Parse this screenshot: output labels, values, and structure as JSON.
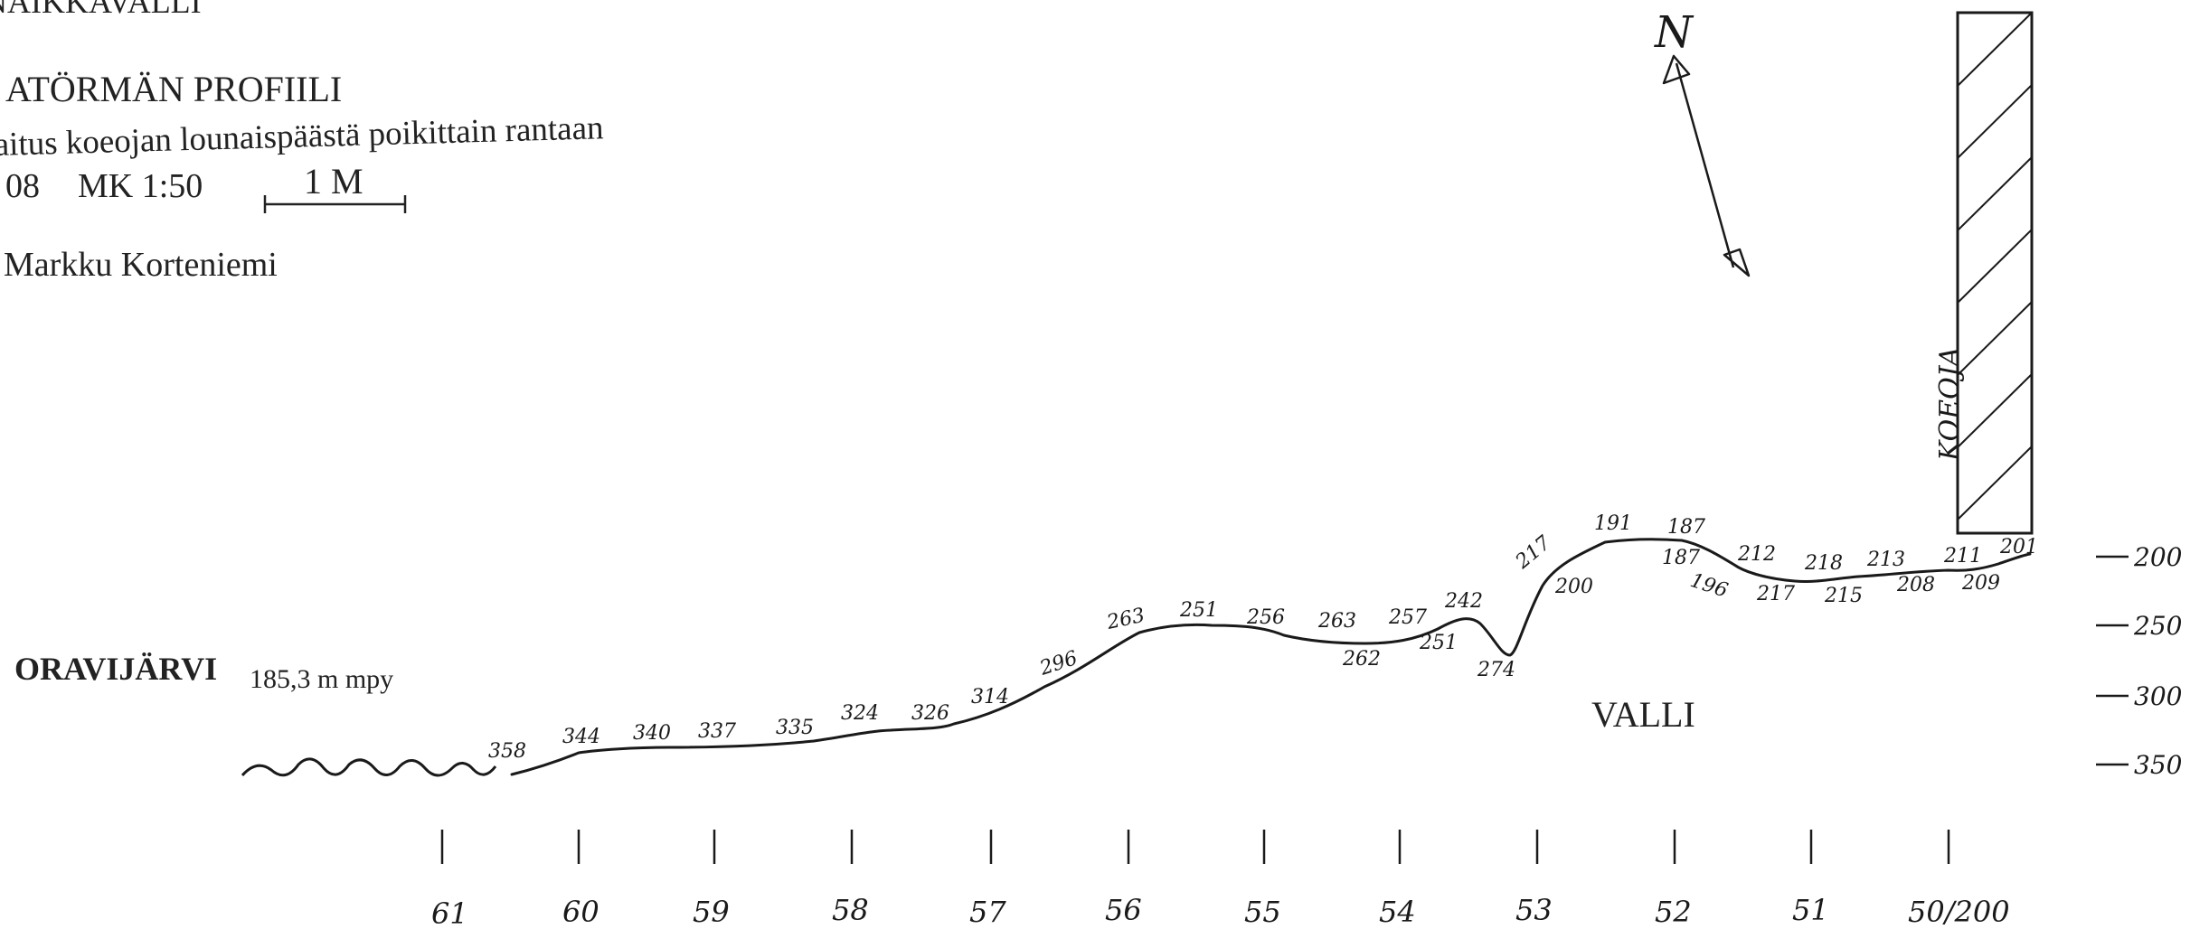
{
  "header": {
    "site": "NAIKKAVALLI",
    "title": "ATÖRMÄN PROFIILI",
    "description": "aitus koeojan lounaispäästä poikittain rantaan",
    "year": "08",
    "scale": "MK 1:50",
    "scale_bar_label": "1 M",
    "author": "Markku Korteniemi"
  },
  "compass": {
    "label": "N"
  },
  "trench": {
    "label": "KOEOJA"
  },
  "lake": {
    "name": "ORAVIJÄRVI",
    "elevation": "185,3 m mpy"
  },
  "rampart": {
    "label": "VALLI"
  },
  "depth_scale": [
    "200",
    "250",
    "300",
    "350"
  ],
  "stations": [
    "61",
    "60",
    "59",
    "58",
    "57",
    "56",
    "55",
    "54",
    "53",
    "52",
    "51",
    "50/200"
  ],
  "upper_readings": [
    "358",
    "344",
    "340",
    "337",
    "335",
    "324",
    "326",
    "314",
    "296",
    "263",
    "251",
    "256",
    "263",
    "257",
    "242",
    "217",
    "191",
    "187",
    "212",
    "218",
    "213",
    "211",
    "201"
  ],
  "lower_readings": [
    "262",
    "251",
    "274",
    "200",
    "187",
    "196",
    "217",
    "215",
    "208",
    "209"
  ],
  "colors": {
    "ink": "#1a1a1a",
    "print": "#222222"
  }
}
